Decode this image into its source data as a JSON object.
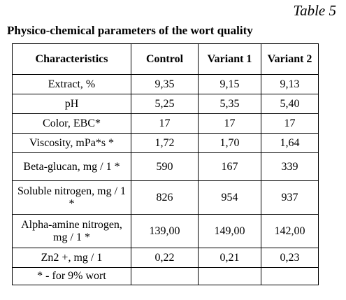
{
  "table_label": "Table 5",
  "caption": "Physico-chemical parameters of the wort quality",
  "columns": [
    "Characteristics",
    "Control",
    "Variant 1",
    "Variant 2"
  ],
  "rows": [
    {
      "label": "Extract, %",
      "control": "9,35",
      "variant1": "9,15",
      "variant2": "9,13"
    },
    {
      "label": "pH",
      "control": "5,25",
      "variant1": "5,35",
      "variant2": "5,40"
    },
    {
      "label": "Color, EBC*",
      "control": "17",
      "variant1": "17",
      "variant2": "17"
    },
    {
      "label": "Viscosity, mPa*s *",
      "control": "1,72",
      "variant1": "1,70",
      "variant2": "1,64"
    },
    {
      "label": "Beta-glucan, mg / 1 *",
      "control": "590",
      "variant1": "167",
      "variant2": "339"
    },
    {
      "label": "Soluble nitrogen, mg / 1 *",
      "control": "826",
      "variant1": "954",
      "variant2": "937"
    },
    {
      "label": "Alpha-amine nitrogen, mg / 1 *",
      "control": "139,00",
      "variant1": "149,00",
      "variant2": "142,00"
    },
    {
      "label": "Zn2 +, mg / 1",
      "control": "0,22",
      "variant1": "0,21",
      "variant2": "0,23"
    }
  ],
  "footnote": "* - for 9% wort"
}
